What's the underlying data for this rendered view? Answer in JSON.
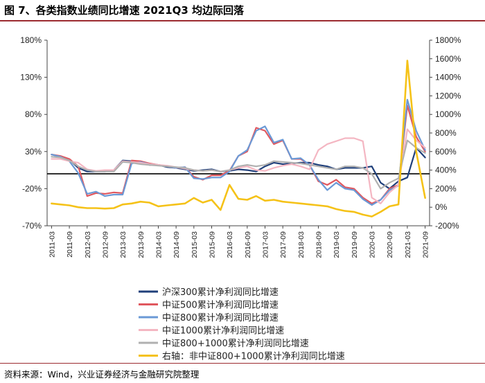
{
  "header": {
    "title": "图 7、各类指数业绩同比增速 2021Q3 均边际回落"
  },
  "footer": {
    "source": "资料来源：Wind，兴业证券经济与金融研究院整理"
  },
  "chart_data": {
    "type": "line",
    "x": [
      "2011-03",
      "2011-06",
      "2011-09",
      "2011-12",
      "2012-03",
      "2012-06",
      "2012-09",
      "2012-12",
      "2013-03",
      "2013-06",
      "2013-09",
      "2013-12",
      "2014-03",
      "2014-06",
      "2014-09",
      "2014-12",
      "2015-03",
      "2015-06",
      "2015-09",
      "2015-12",
      "2016-03",
      "2016-06",
      "2016-09",
      "2016-12",
      "2017-03",
      "2017-06",
      "2017-09",
      "2017-12",
      "2018-03",
      "2018-06",
      "2018-09",
      "2018-12",
      "2019-03",
      "2019-06",
      "2019-09",
      "2019-12",
      "2020-03",
      "2020-06",
      "2020-09",
      "2020-12",
      "2021-03",
      "2021-06",
      "2021-09"
    ],
    "x_tick_labels": [
      "2011-03",
      "2011-09",
      "2012-03",
      "2012-09",
      "2013-03",
      "2013-09",
      "2014-03",
      "2014-09",
      "2015-03",
      "2015-09",
      "2016-03",
      "2016-09",
      "2017-03",
      "2017-09",
      "2018-03",
      "2018-09",
      "2019-03",
      "2019-09",
      "2020-03",
      "2020-09",
      "2021-03",
      "2021-09"
    ],
    "y_left": {
      "ylim": [
        -70,
        180
      ],
      "ticks": [
        "180%",
        "130%",
        "80%",
        "30%",
        "-20%",
        "-70%"
      ],
      "tick_values": [
        180,
        130,
        80,
        30,
        -20,
        -70
      ]
    },
    "y_right": {
      "ylim": [
        -200,
        1800
      ],
      "ticks": [
        "1800%",
        "1600%",
        "1400%",
        "1200%",
        "1000%",
        "800%",
        "600%",
        "400%",
        "200%",
        "0%",
        "-200%"
      ],
      "tick_values": [
        1800,
        1600,
        1400,
        1200,
        1000,
        800,
        600,
        400,
        200,
        0,
        -200
      ]
    },
    "grid": false,
    "legend_position": "bottom",
    "series": [
      {
        "name": "沪深300累计净利润同比增速",
        "axis": "left",
        "color": "#1f3f7a",
        "values": [
          26,
          23,
          19,
          8,
          3,
          3,
          3,
          5,
          18,
          17,
          15,
          12,
          12,
          9,
          8,
          6,
          4,
          5,
          6,
          3,
          4,
          6,
          5,
          3,
          10,
          15,
          13,
          14,
          15,
          15,
          12,
          10,
          6,
          8,
          8,
          8,
          10,
          -12,
          -20,
          -10,
          -5,
          35,
          22
        ]
      },
      {
        "name": "中证500累计净利润同比增速",
        "axis": "left",
        "color": "#e0585f",
        "values": [
          26,
          24,
          20,
          10,
          -30,
          -26,
          -27,
          -25,
          -26,
          18,
          17,
          14,
          12,
          10,
          8,
          9,
          -4,
          -8,
          -2,
          -2,
          4,
          24,
          30,
          62,
          58,
          40,
          45,
          20,
          20,
          12,
          -10,
          -15,
          -8,
          -18,
          -20,
          -32,
          -40,
          -35,
          -20,
          -15,
          92,
          50,
          30
        ]
      },
      {
        "name": "中证800累计净利润同比增速",
        "axis": "left",
        "color": "#6a99d6",
        "values": [
          26,
          23,
          17,
          1,
          -27,
          -24,
          -30,
          -28,
          -28,
          14,
          16,
          13,
          12,
          10,
          8,
          9,
          -6,
          -7,
          -5,
          -5,
          3,
          24,
          32,
          58,
          64,
          42,
          46,
          20,
          21,
          12,
          -8,
          -22,
          -12,
          -20,
          -22,
          -34,
          -42,
          -35,
          -22,
          -16,
          100,
          58,
          32
        ]
      },
      {
        "name": "中证1000累计净利润同比增速",
        "axis": "left",
        "color": "#f4b6c2",
        "values": [
          20,
          20,
          17,
          15,
          6,
          4,
          5,
          5,
          17,
          16,
          15,
          13,
          12,
          11,
          9,
          7,
          5,
          4,
          5,
          3,
          5,
          8,
          10,
          5,
          4,
          8,
          11,
          13,
          10,
          6,
          32,
          40,
          44,
          48,
          48,
          44,
          -32,
          -40,
          -25,
          -15,
          60,
          45,
          35
        ]
      },
      {
        "name": "中证800+1000累计净利润同比增速",
        "axis": "left",
        "color": "#b0b0b0",
        "values": [
          23,
          22,
          18,
          10,
          5,
          3,
          3,
          3,
          16,
          15,
          13,
          12,
          11,
          10,
          9,
          8,
          5,
          4,
          5,
          3,
          5,
          10,
          12,
          10,
          12,
          17,
          16,
          15,
          14,
          12,
          10,
          8,
          6,
          10,
          10,
          8,
          0,
          -20,
          -12,
          -6,
          45,
          35,
          28
        ]
      },
      {
        "name": "右轴：非中证800+1000累计净利润同比增速",
        "axis": "right",
        "color": "#f5c218",
        "values": [
          40,
          30,
          20,
          0,
          -10,
          -10,
          -15,
          -10,
          30,
          40,
          60,
          50,
          10,
          20,
          30,
          40,
          100,
          50,
          80,
          -30,
          240,
          90,
          80,
          120,
          70,
          80,
          60,
          50,
          40,
          30,
          20,
          10,
          -20,
          -40,
          -50,
          -80,
          -100,
          -50,
          10,
          30,
          1580,
          600,
          100
        ]
      }
    ]
  }
}
